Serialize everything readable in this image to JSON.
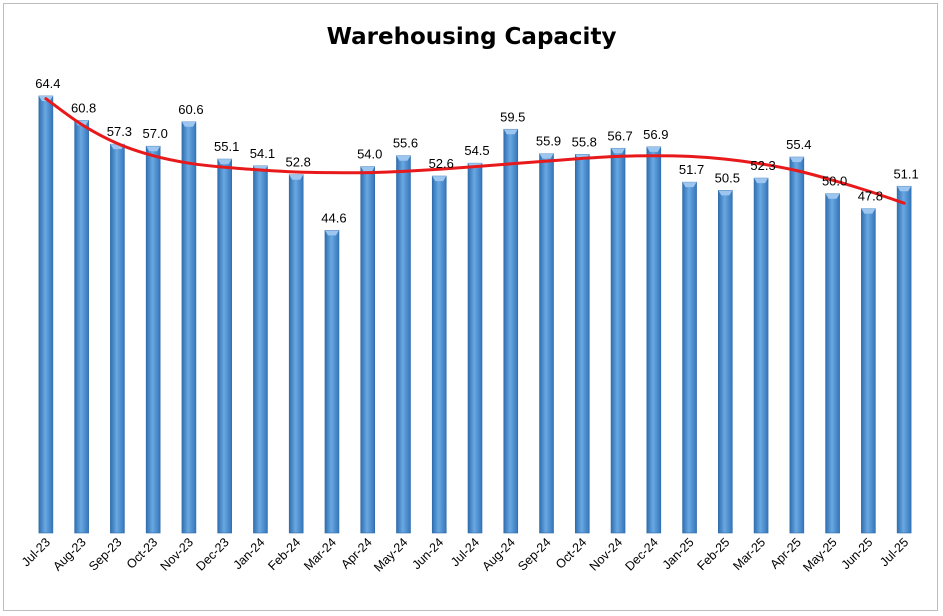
{
  "chart_data": {
    "type": "bar",
    "title": "Warehousing Capacity",
    "xlabel": "",
    "ylabel": "",
    "ylim": [
      0,
      70
    ],
    "grid": false,
    "categories": [
      "Jul-23",
      "Aug-23",
      "Sep-23",
      "Oct-23",
      "Nov-23",
      "Dec-23",
      "Jan-24",
      "Feb-24",
      "Mar-24",
      "Apr-24",
      "May-24",
      "Jun-24",
      "Jul-24",
      "Aug-24",
      "Sep-24",
      "Oct-24",
      "Nov-24",
      "Dec-24",
      "Jan-25",
      "Feb-25",
      "Mar-25",
      "Apr-25",
      "May-25",
      "Jun-25",
      "Jul-25"
    ],
    "values": [
      64.4,
      60.8,
      57.3,
      57.0,
      60.6,
      55.1,
      54.1,
      52.8,
      44.6,
      54.0,
      55.6,
      52.6,
      54.5,
      59.5,
      55.9,
      55.8,
      56.7,
      56.9,
      51.7,
      50.5,
      52.3,
      55.4,
      50.0,
      47.8,
      51.1
    ],
    "trendline": {
      "type": "polynomial",
      "values": [
        64.0,
        60.2,
        57.4,
        55.6,
        54.5,
        53.9,
        53.5,
        53.2,
        53.1,
        53.1,
        53.3,
        53.6,
        54.0,
        54.4,
        54.8,
        55.2,
        55.5,
        55.6,
        55.5,
        55.1,
        54.4,
        53.4,
        52.0,
        50.4,
        48.6
      ]
    },
    "colors": {
      "bar": "#5b9bd5",
      "bar_dark": "#2e6aa8",
      "bar_light": "#9cc6ef",
      "trend": "#e8191b"
    }
  }
}
